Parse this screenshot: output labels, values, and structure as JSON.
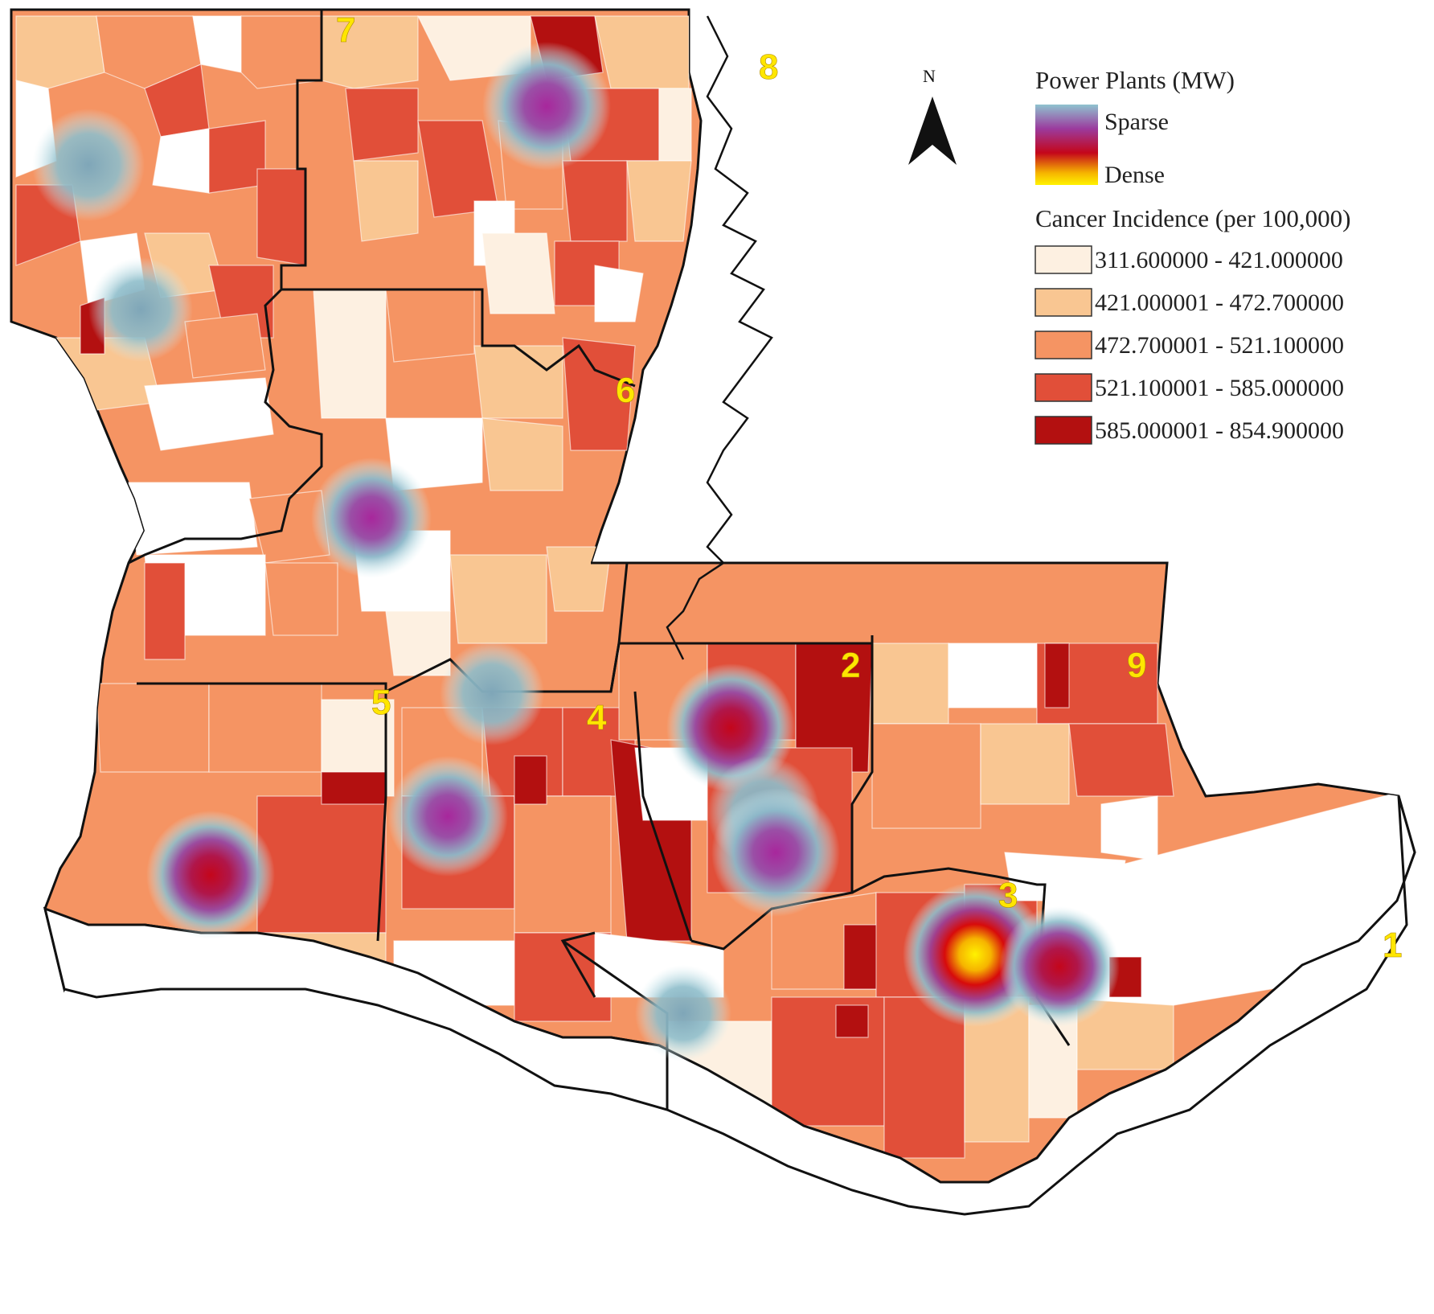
{
  "map": {
    "north_label": "N",
    "region_labels": [
      "1",
      "2",
      "3",
      "4",
      "5",
      "6",
      "7",
      "8",
      "9"
    ]
  },
  "legend": {
    "power_title": "Power Plants (MW)",
    "sparse_label": "Sparse",
    "dense_label": "Dense",
    "cancer_title": "Cancer Incidence (per 100,000)",
    "classes": [
      {
        "label": "311.600000 - 421.000000",
        "color": "#fdf0e1"
      },
      {
        "label": "421.000001 - 472.700000",
        "color": "#f9c692"
      },
      {
        "label": "472.700001 - 521.100000",
        "color": "#f59463"
      },
      {
        "label": "521.100001 - 585.000000",
        "color": "#e14f39"
      },
      {
        "label": "585.000001 - 854.900000",
        "color": "#b31010"
      }
    ]
  },
  "colors": {
    "sparse": "#8fc3cf",
    "mid": "#9b3b9e",
    "dense_red": "#b31010",
    "dense_yellow": "#ffee00",
    "label_yellow": "#ffe600"
  }
}
